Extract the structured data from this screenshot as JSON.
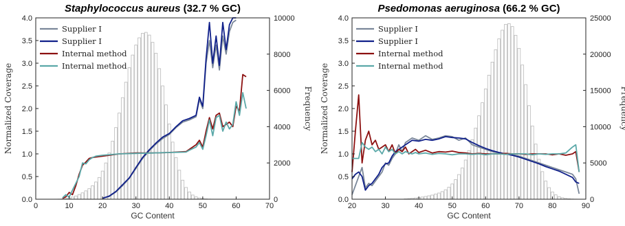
{
  "chart_data": [
    {
      "type": "line",
      "title_italic": "Staphylococcus aureus",
      "title_rest": " (32.7 % GC)",
      "xlabel": "GC Content",
      "ylabel": "Normalized Coverage",
      "y2label": "Frequency",
      "xlim": [
        0,
        70
      ],
      "ylim": [
        0,
        4.0
      ],
      "y2lim": [
        0,
        10000
      ],
      "xticks": [
        0,
        10,
        20,
        30,
        40,
        50,
        60,
        70
      ],
      "yticks": [
        "0.0",
        "0.5",
        "1.0",
        "1.5",
        "2.0",
        "2.5",
        "3.0",
        "3.5",
        "4.0"
      ],
      "y2ticks": [
        0,
        2000,
        4000,
        6000,
        8000,
        10000
      ],
      "legend_position": "upper-left",
      "histogram": {
        "x": [
          6,
          7,
          8,
          9,
          10,
          11,
          12,
          13,
          14,
          15,
          16,
          17,
          18,
          19,
          20,
          21,
          22,
          23,
          24,
          25,
          26,
          27,
          28,
          29,
          30,
          31,
          32,
          33,
          34,
          35,
          36,
          37,
          38,
          39,
          40,
          41,
          42,
          43,
          44,
          45,
          46,
          47,
          48,
          49,
          50,
          51,
          52,
          53,
          54,
          55,
          56,
          57,
          58,
          59,
          60,
          61,
          62,
          63
        ],
        "values": [
          5,
          10,
          20,
          40,
          70,
          120,
          180,
          260,
          350,
          460,
          580,
          740,
          950,
          1200,
          1550,
          2000,
          2550,
          3200,
          3950,
          4750,
          5600,
          6450,
          7250,
          7950,
          8500,
          8900,
          9150,
          9200,
          9050,
          8650,
          8050,
          7200,
          6250,
          5200,
          4150,
          3150,
          2300,
          1600,
          1050,
          650,
          400,
          230,
          130,
          70,
          40,
          20,
          10,
          5,
          3,
          2,
          1,
          1,
          1,
          1,
          1,
          1,
          1,
          1
        ]
      },
      "series": [
        {
          "name": "Supplier I",
          "color": "#7a8799",
          "x": [
            20,
            22,
            24,
            26,
            28,
            30,
            32,
            34,
            36,
            38,
            40,
            42,
            44,
            46,
            48,
            49,
            50,
            51,
            52,
            53,
            54,
            55,
            56,
            57,
            58,
            59,
            60
          ],
          "values": [
            0.02,
            0.06,
            0.16,
            0.3,
            0.46,
            0.68,
            0.9,
            1.07,
            1.22,
            1.34,
            1.43,
            1.58,
            1.7,
            1.75,
            1.82,
            2.2,
            2.0,
            3.0,
            3.5,
            2.9,
            3.4,
            2.85,
            3.6,
            3.2,
            3.7,
            3.9,
            3.95
          ]
        },
        {
          "name": "Supplier I",
          "color": "#10208a",
          "x": [
            20,
            22,
            24,
            26,
            28,
            30,
            32,
            34,
            36,
            38,
            40,
            42,
            44,
            46,
            48,
            49,
            50,
            51,
            52,
            53,
            54,
            55,
            56,
            57,
            58,
            59,
            60
          ],
          "values": [
            0.02,
            0.07,
            0.17,
            0.32,
            0.47,
            0.7,
            0.92,
            1.09,
            1.24,
            1.37,
            1.45,
            1.6,
            1.73,
            1.78,
            1.85,
            2.25,
            2.05,
            3.1,
            3.9,
            3.0,
            3.6,
            2.95,
            3.9,
            3.3,
            3.85,
            4.0,
            4.05
          ]
        },
        {
          "name": "Internal method",
          "color": "#8c1010",
          "x": [
            8,
            9,
            10,
            11,
            12,
            13,
            14,
            15,
            16,
            17,
            18,
            20,
            25,
            30,
            35,
            40,
            45,
            46,
            48,
            49,
            50,
            51,
            52,
            53,
            54,
            55,
            56,
            57,
            58,
            59,
            60,
            61,
            62,
            63
          ],
          "values": [
            0.02,
            0.05,
            0.15,
            0.1,
            0.3,
            0.55,
            0.75,
            0.82,
            0.9,
            0.92,
            0.93,
            0.95,
            1.0,
            1.02,
            1.02,
            1.03,
            1.05,
            1.1,
            1.2,
            1.3,
            1.15,
            1.5,
            1.8,
            1.55,
            1.85,
            1.9,
            1.6,
            1.65,
            1.7,
            1.6,
            2.05,
            1.95,
            2.75,
            2.7
          ]
        },
        {
          "name": "Internal method",
          "color": "#5aa8a8",
          "x": [
            8,
            9,
            10,
            11,
            12,
            13,
            14,
            15,
            16,
            17,
            18,
            20,
            25,
            30,
            35,
            40,
            45,
            46,
            48,
            49,
            50,
            51,
            52,
            53,
            54,
            55,
            56,
            57,
            58,
            59,
            60,
            61,
            62,
            63
          ],
          "values": [
            0.03,
            0.1,
            0.05,
            0.2,
            0.35,
            0.5,
            0.8,
            0.78,
            0.87,
            0.92,
            0.95,
            0.97,
            1.0,
            1.01,
            1.02,
            1.03,
            1.04,
            1.08,
            1.15,
            1.25,
            1.1,
            1.4,
            1.75,
            1.4,
            1.8,
            1.85,
            1.5,
            1.7,
            1.55,
            1.65,
            2.15,
            1.85,
            2.35,
            2.0
          ]
        }
      ]
    },
    {
      "type": "line",
      "title_italic": "Psedomonas aeruginosa",
      "title_rest": " (66.2 % GC)",
      "xlabel": "GC Content",
      "ylabel": "Normalized Coverage",
      "y2label": "Frequency",
      "xlim": [
        20,
        90
      ],
      "ylim": [
        0,
        4.0
      ],
      "y2lim": [
        0,
        25000
      ],
      "xticks": [
        20,
        30,
        40,
        50,
        60,
        70,
        80,
        90
      ],
      "yticks": [
        "0.0",
        "0.5",
        "1.0",
        "1.5",
        "2.0",
        "2.5",
        "3.0",
        "3.5",
        "4.0"
      ],
      "y2ticks": [
        0,
        5000,
        10000,
        15000,
        20000,
        25000
      ],
      "legend_position": "upper-left",
      "histogram": {
        "x": [
          36,
          37,
          38,
          39,
          40,
          41,
          42,
          43,
          44,
          45,
          46,
          47,
          48,
          49,
          50,
          51,
          52,
          53,
          54,
          55,
          56,
          57,
          58,
          59,
          60,
          61,
          62,
          63,
          64,
          65,
          66,
          67,
          68,
          69,
          70,
          71,
          72,
          73,
          74,
          75,
          76,
          77,
          78,
          79,
          80,
          81,
          82,
          83,
          84,
          85,
          86,
          87
        ],
        "values": [
          50,
          80,
          120,
          170,
          230,
          300,
          380,
          470,
          570,
          700,
          850,
          1050,
          1300,
          1650,
          2100,
          2700,
          3400,
          4300,
          5400,
          6700,
          8200,
          9800,
          11500,
          13300,
          15200,
          17100,
          18900,
          20600,
          22100,
          23300,
          24100,
          24200,
          23800,
          22600,
          20800,
          18500,
          15800,
          12900,
          10100,
          7600,
          5500,
          3800,
          2500,
          1600,
          1000,
          600,
          350,
          200,
          110,
          60,
          30,
          15
        ]
      },
      "series": [
        {
          "name": "Supplier I",
          "color": "#7a8799",
          "x": [
            20,
            21,
            22,
            23,
            24,
            25,
            26,
            27,
            28,
            29,
            30,
            31,
            32,
            33,
            34,
            35,
            36,
            38,
            40,
            42,
            44,
            46,
            48,
            50,
            52,
            54,
            56,
            58,
            60,
            62,
            64,
            66,
            68,
            70,
            72,
            74,
            76,
            78,
            80,
            82,
            84,
            86,
            87,
            88
          ],
          "values": [
            0.1,
            0.3,
            0.5,
            0.7,
            0.25,
            0.35,
            0.3,
            0.4,
            0.5,
            0.6,
            0.8,
            0.75,
            0.9,
            1.0,
            1.2,
            1.05,
            1.25,
            1.35,
            1.3,
            1.4,
            1.32,
            1.35,
            1.4,
            1.38,
            1.3,
            1.35,
            1.2,
            1.15,
            1.1,
            1.05,
            1.02,
            1.0,
            0.98,
            0.95,
            0.9,
            0.85,
            0.8,
            0.75,
            0.7,
            0.65,
            0.6,
            0.55,
            0.45,
            0.12
          ]
        },
        {
          "name": "Supplier I",
          "color": "#10208a",
          "x": [
            20,
            21,
            22,
            23,
            24,
            25,
            26,
            27,
            28,
            29,
            30,
            31,
            32,
            33,
            34,
            35,
            36,
            38,
            40,
            42,
            44,
            46,
            48,
            50,
            52,
            54,
            56,
            58,
            60,
            62,
            64,
            66,
            68,
            70,
            72,
            74,
            76,
            78,
            80,
            82,
            84,
            86,
            87,
            88
          ],
          "values": [
            0.45,
            0.55,
            0.6,
            0.5,
            0.2,
            0.3,
            0.35,
            0.45,
            0.55,
            0.7,
            0.78,
            0.8,
            0.95,
            1.05,
            1.1,
            1.15,
            1.2,
            1.3,
            1.28,
            1.32,
            1.3,
            1.33,
            1.38,
            1.36,
            1.35,
            1.33,
            1.25,
            1.18,
            1.12,
            1.07,
            1.03,
            1.0,
            0.97,
            0.93,
            0.88,
            0.83,
            0.78,
            0.72,
            0.67,
            0.62,
            0.55,
            0.48,
            0.38,
            0.35
          ]
        },
        {
          "name": "Internal method",
          "color": "#8c1010",
          "x": [
            20,
            21,
            22,
            23,
            24,
            25,
            26,
            27,
            28,
            29,
            30,
            31,
            32,
            33,
            34,
            35,
            36,
            37,
            38,
            39,
            40,
            42,
            44,
            46,
            48,
            50,
            52,
            54,
            56,
            58,
            60,
            62,
            64,
            66,
            68,
            70,
            72,
            74,
            76,
            78,
            80,
            82,
            84,
            86,
            87,
            88
          ],
          "values": [
            0.6,
            1.5,
            2.3,
            0.8,
            1.3,
            1.5,
            1.2,
            1.3,
            1.1,
            1.15,
            1.2,
            1.05,
            1.2,
            1.0,
            1.1,
            1.05,
            1.15,
            1.0,
            1.05,
            1.1,
            1.03,
            1.08,
            1.02,
            1.05,
            1.04,
            1.06,
            1.03,
            1.02,
            1.0,
            1.01,
            1.0,
            1.0,
            1.0,
            1.01,
            1.0,
            1.0,
            0.99,
            1.0,
            1.0,
            1.0,
            0.98,
            1.0,
            0.97,
            1.0,
            1.05,
            0.6
          ]
        },
        {
          "name": "Internal method",
          "color": "#5aa8a8",
          "x": [
            20,
            21,
            22,
            23,
            24,
            25,
            26,
            27,
            28,
            29,
            30,
            31,
            32,
            33,
            34,
            35,
            36,
            37,
            38,
            39,
            40,
            42,
            44,
            46,
            48,
            50,
            52,
            54,
            56,
            58,
            60,
            62,
            64,
            66,
            68,
            70,
            72,
            74,
            76,
            78,
            80,
            82,
            84,
            86,
            87,
            88
          ],
          "values": [
            0.9,
            0.9,
            0.9,
            1.25,
            1.15,
            1.1,
            1.15,
            1.05,
            1.1,
            1.0,
            1.15,
            1.05,
            1.1,
            1.0,
            1.05,
            1.0,
            1.05,
            1.02,
            1.0,
            1.03,
            1.0,
            1.02,
            0.99,
            1.01,
            1.0,
            0.98,
            1.0,
            1.0,
            0.99,
            1.0,
            0.98,
            1.0,
            1.0,
            0.99,
            1.0,
            1.0,
            1.0,
            0.98,
            1.0,
            0.99,
            1.0,
            1.0,
            1.02,
            1.15,
            1.2,
            0.6
          ]
        }
      ]
    }
  ]
}
